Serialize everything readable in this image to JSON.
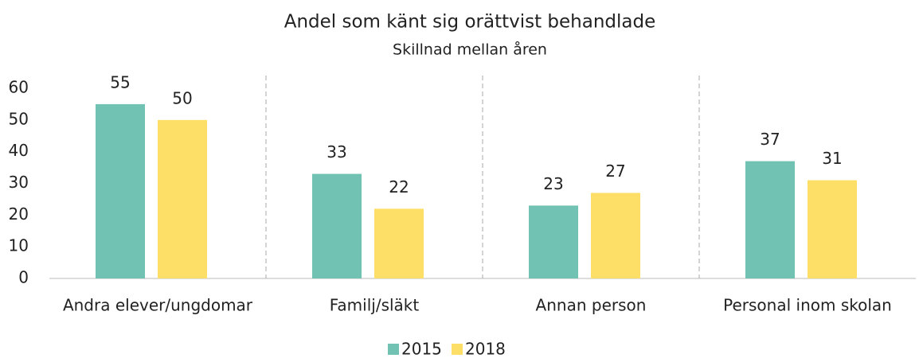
{
  "chart_data": {
    "type": "bar",
    "title": "Andel som känt sig orättvist behandlade",
    "subtitle": "Skillnad mellan åren",
    "categories": [
      "Andra elever/ungdomar",
      "Familj/släkt",
      "Annan person",
      "Personal inom skolan"
    ],
    "series": [
      {
        "name": "2015",
        "color": "#72c2b4",
        "values": [
          55,
          33,
          23,
          37
        ]
      },
      {
        "name": "2018",
        "color": "#fddf68",
        "values": [
          50,
          22,
          27,
          31
        ]
      }
    ],
    "ylim": [
      0,
      60
    ],
    "yticks": [
      0,
      10,
      20,
      30,
      40,
      50,
      60
    ],
    "grid": false,
    "legend": "bottom"
  }
}
